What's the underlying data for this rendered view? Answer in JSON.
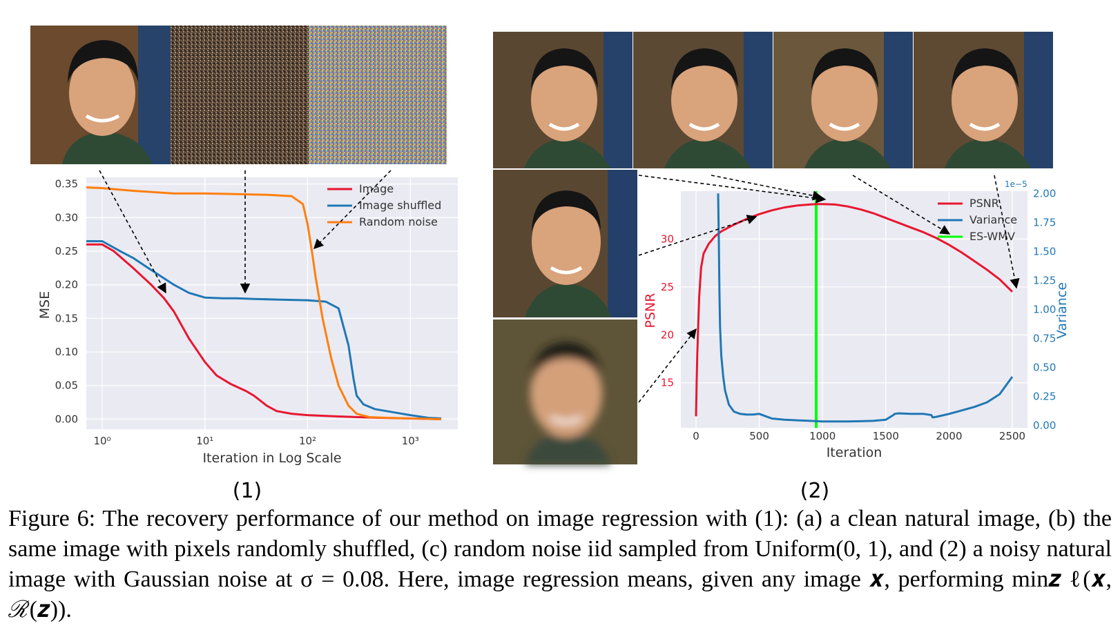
{
  "panel_labels": [
    "(1)",
    "(2)"
  ],
  "images": {
    "panel1": [
      "Image",
      "Image shuffled",
      "Random noise"
    ],
    "panel2_top": [
      "noisy-face-1",
      "noisy-face-2",
      "noisy-face-3",
      "noisy-face-4"
    ],
    "panel2_side": [
      "face-mid",
      "face-blurry"
    ]
  },
  "caption": "Figure 6: The recovery performance of our method on image regression with (1): (a) a clean natural image, (b) the same image with pixels randomly shuffled, (c) random noise iid sampled from Uniform(0, 1), and (2) a noisy natural image with Gaussian noise at σ = 0.08. Here, image regression means, given any image 𝒙, performing min𝒛 ℓ(𝒙, ℛ(𝒛)).",
  "colors": {
    "red": "#e8162f",
    "blue": "#1f77b4",
    "orange": "#ff7f0e",
    "green": "#00ff00",
    "panel_bg": "#eaeaf2"
  },
  "chart_data": [
    {
      "type": "line",
      "xlabel": "Iteration in Log Scale",
      "ylabel": "MSE",
      "xscale": "log",
      "xlim": [
        0.7,
        2900
      ],
      "ylim": [
        -0.015,
        0.36
      ],
      "x_ticks": [
        {
          "v": 1,
          "label": "10⁰"
        },
        {
          "v": 10,
          "label": "10¹"
        },
        {
          "v": 100,
          "label": "10²"
        },
        {
          "v": 1000,
          "label": "10³"
        }
      ],
      "y_ticks": [
        {
          "v": 0.0,
          "label": "0.00"
        },
        {
          "v": 0.05,
          "label": "0.05"
        },
        {
          "v": 0.1,
          "label": "0.10"
        },
        {
          "v": 0.15,
          "label": "0.15"
        },
        {
          "v": 0.2,
          "label": "0.20"
        },
        {
          "v": 0.25,
          "label": "0.25"
        },
        {
          "v": 0.3,
          "label": "0.30"
        },
        {
          "v": 0.35,
          "label": "0.35"
        }
      ],
      "grid": true,
      "legend_position": "top-right",
      "series": [
        {
          "name": "Image",
          "color": "#e8162f",
          "x": [
            0.7,
            1,
            1.3,
            2,
            3,
            4,
            5,
            7,
            10,
            13,
            18,
            25,
            30,
            40,
            50,
            70,
            100,
            200,
            500,
            1000,
            2000
          ],
          "y": [
            0.26,
            0.26,
            0.25,
            0.225,
            0.2,
            0.18,
            0.16,
            0.12,
            0.085,
            0.065,
            0.052,
            0.042,
            0.035,
            0.02,
            0.012,
            0.008,
            0.006,
            0.004,
            0.002,
            0.001,
            0.0
          ]
        },
        {
          "name": "Image shuffled",
          "color": "#1f77b4",
          "x": [
            0.7,
            1,
            1.5,
            2,
            3,
            5,
            7,
            10,
            15,
            20,
            30,
            50,
            100,
            150,
            200,
            250,
            280,
            300,
            350,
            450,
            700,
            1000,
            1500,
            2000
          ],
          "y": [
            0.265,
            0.265,
            0.25,
            0.24,
            0.222,
            0.2,
            0.188,
            0.181,
            0.18,
            0.18,
            0.179,
            0.178,
            0.177,
            0.175,
            0.165,
            0.11,
            0.06,
            0.035,
            0.022,
            0.015,
            0.01,
            0.006,
            0.002,
            0.001
          ]
        },
        {
          "name": "Random noise",
          "color": "#ff7f0e",
          "x": [
            0.7,
            1,
            2,
            5,
            10,
            20,
            40,
            70,
            90,
            100,
            110,
            120,
            140,
            170,
            200,
            250,
            300,
            400,
            600,
            1000,
            2000
          ],
          "y": [
            0.345,
            0.344,
            0.34,
            0.336,
            0.336,
            0.335,
            0.334,
            0.332,
            0.32,
            0.29,
            0.25,
            0.21,
            0.15,
            0.09,
            0.05,
            0.02,
            0.008,
            0.003,
            0.002,
            0.001,
            0.0
          ]
        }
      ]
    },
    {
      "type": "line",
      "xlabel": "Iteration",
      "ylabel": "PSNR",
      "y2label": "Variance",
      "y2_scale_label": "1e−5",
      "xlim": [
        -120,
        2620
      ],
      "ylim": [
        10.3,
        35
      ],
      "y2lim": [
        -0.02,
        2.02
      ],
      "x_ticks": [
        0,
        500,
        1000,
        1500,
        2000,
        2500
      ],
      "y_ticks": [
        15,
        20,
        25,
        30
      ],
      "y2_ticks": [
        {
          "v": 0.0,
          "label": "0.00"
        },
        {
          "v": 0.25,
          "label": "0.25"
        },
        {
          "v": 0.5,
          "label": "0.50"
        },
        {
          "v": 0.75,
          "label": "0.75"
        },
        {
          "v": 1.0,
          "label": "1.00"
        },
        {
          "v": 1.25,
          "label": "1.25"
        },
        {
          "v": 1.5,
          "label": "1.50"
        },
        {
          "v": 1.75,
          "label": "1.75"
        },
        {
          "v": 2.0,
          "label": "2.00"
        }
      ],
      "grid": true,
      "legend_position": "top-right",
      "es_wmv_x": 950,
      "series": [
        {
          "name": "PSNR",
          "color": "#e8162f",
          "axis": "left",
          "x": [
            0,
            5,
            10,
            15,
            25,
            40,
            60,
            100,
            150,
            200,
            300,
            400,
            500,
            600,
            700,
            800,
            900,
            950,
            1000,
            1100,
            1200,
            1300,
            1400,
            1500,
            1600,
            1700,
            1800,
            1900,
            2000,
            2100,
            2200,
            2300,
            2400,
            2500
          ],
          "y": [
            11.5,
            15,
            18,
            20,
            24,
            27,
            28.5,
            29.5,
            30.3,
            30.8,
            31.5,
            32.1,
            32.6,
            33,
            33.3,
            33.5,
            33.6,
            33.65,
            33.65,
            33.6,
            33.4,
            33.1,
            32.7,
            32.2,
            31.7,
            31.2,
            30.7,
            30.1,
            29.4,
            28.6,
            27.7,
            26.8,
            25.8,
            24.5
          ]
        },
        {
          "name": "Variance",
          "color": "#1f77b4",
          "axis": "right",
          "x": [
            175,
            180,
            185,
            190,
            200,
            215,
            230,
            260,
            300,
            350,
            400,
            450,
            500,
            550,
            600,
            700,
            800,
            900,
            1000,
            1100,
            1200,
            1300,
            1400,
            1500,
            1560,
            1570,
            1600,
            1700,
            1800,
            1860,
            1870,
            1900,
            2000,
            2100,
            2200,
            2300,
            2400,
            2500
          ],
          "y": [
            2.0,
            1.6,
            1.15,
            0.85,
            0.6,
            0.42,
            0.3,
            0.18,
            0.12,
            0.1,
            0.095,
            0.095,
            0.1,
            0.08,
            0.06,
            0.05,
            0.045,
            0.04,
            0.035,
            0.035,
            0.035,
            0.037,
            0.04,
            0.05,
            0.09,
            0.1,
            0.105,
            0.1,
            0.1,
            0.09,
            0.07,
            0.075,
            0.1,
            0.13,
            0.16,
            0.2,
            0.27,
            0.42
          ]
        },
        {
          "name": "ES-WMV",
          "color": "#00ff00",
          "axis": "left"
        }
      ]
    }
  ]
}
